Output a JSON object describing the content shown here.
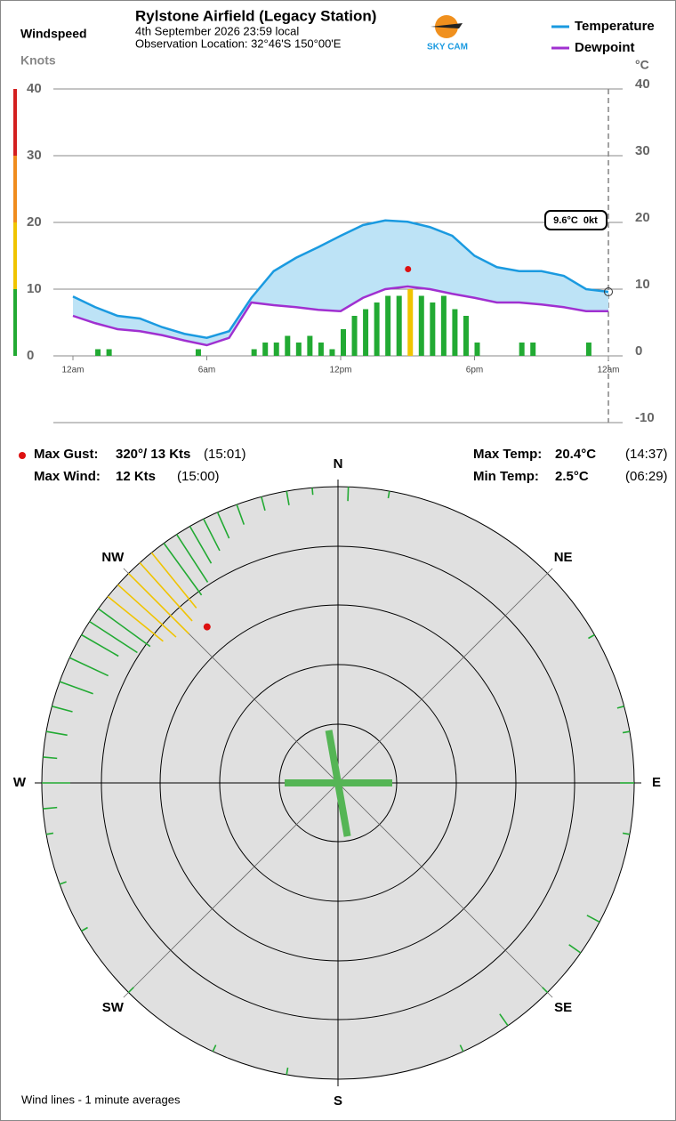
{
  "header": {
    "title": "Rylstone Airfield (Legacy Station)",
    "date": "4th September 2026  23:59 local",
    "location": "Observation Location: 32°46'S 150°00'E",
    "logo": "SKY CAM"
  },
  "chart_data": [
    {
      "type": "line",
      "yaxis_title": "Windspeed",
      "ylabel": "Knots",
      "y2label": "°C",
      "xlim": [
        0,
        24
      ],
      "xticks": [
        {
          "value": 0,
          "label": "12am"
        },
        {
          "value": 6,
          "label": "6am"
        },
        {
          "value": 12,
          "label": "12pm"
        },
        {
          "value": 18,
          "label": "6pm"
        },
        {
          "value": 24,
          "label": "12am"
        }
      ],
      "ylim": [
        0,
        40
      ],
      "yticks": [
        0,
        10,
        20,
        30,
        40
      ],
      "y2lim": [
        -10,
        40
      ],
      "y2ticks": [
        -10,
        0,
        10,
        20,
        30,
        40
      ],
      "grid": true,
      "legend": "top-right",
      "fill_color": "#bde3f6",
      "series": [
        {
          "name": "Temperature",
          "color": "#1a9ae0",
          "axis": "y2",
          "x": [
            0,
            1,
            2,
            3,
            4,
            5,
            6,
            7,
            8,
            9,
            10,
            11,
            12,
            13,
            14,
            15,
            16,
            17,
            18,
            19,
            20,
            21,
            22,
            23,
            24
          ],
          "values": [
            8.9,
            7.3,
            6.0,
            5.6,
            4.3,
            3.3,
            2.7,
            3.7,
            8.7,
            12.7,
            14.7,
            16.3,
            18.0,
            19.6,
            20.3,
            20.1,
            19.3,
            18.0,
            15.0,
            13.3,
            12.7,
            12.7,
            12.0,
            10.0,
            9.6
          ]
        },
        {
          "name": "Dewpoint",
          "color": "#a030d0",
          "axis": "y2",
          "x": [
            0,
            1,
            2,
            3,
            4,
            5,
            6,
            7,
            8,
            9,
            10,
            11,
            12,
            13,
            14,
            15,
            16,
            17,
            18,
            19,
            20,
            21,
            22,
            23,
            24
          ],
          "values": [
            6.0,
            4.9,
            4.0,
            3.7,
            3.1,
            2.3,
            1.6,
            2.7,
            8.0,
            7.6,
            7.3,
            6.9,
            6.7,
            8.7,
            10.0,
            10.4,
            10.0,
            9.3,
            8.7,
            8.0,
            8.0,
            7.7,
            7.3,
            6.7,
            6.7
          ]
        }
      ],
      "wind": {
        "x": [
          0,
          0.5,
          1,
          1.5,
          2,
          2.5,
          3,
          3.5,
          4,
          4.5,
          5,
          5.5,
          6,
          6.5,
          7,
          7.5,
          8,
          8.5,
          9,
          9.5,
          10,
          10.5,
          11,
          11.5,
          12,
          12.5,
          13,
          13.5,
          14,
          14.5,
          15,
          15.5,
          16,
          16.5,
          17,
          17.5,
          18,
          18.5,
          19,
          19.5,
          20,
          20.5,
          21,
          21.5,
          22,
          22.5,
          23,
          23.5
        ],
        "values": [
          0,
          0,
          1,
          1,
          0,
          0,
          0,
          0,
          0,
          0,
          0,
          1,
          0,
          0,
          0,
          0,
          1,
          2,
          2,
          3,
          2,
          3,
          2,
          1,
          4,
          6,
          7,
          8,
          9,
          9,
          10,
          9,
          8,
          9,
          7,
          6,
          2,
          0,
          0,
          0,
          2,
          2,
          0,
          0,
          0,
          0,
          2,
          0
        ],
        "gust": {
          "x": 15.02,
          "value": 13,
          "color": "#dd1111"
        }
      },
      "bands": [
        {
          "from": 0,
          "to": 10,
          "color": "#22aa33"
        },
        {
          "from": 10,
          "to": 20,
          "color": "#f0c400"
        },
        {
          "from": 20,
          "to": 30,
          "color": "#f08c1e"
        },
        {
          "from": 30,
          "to": 40,
          "color": "#d42020"
        }
      ],
      "annotation": {
        "x": 24,
        "value": 9.6,
        "label": "9.6°C  0kt"
      }
    },
    {
      "type": "polar",
      "compass": [
        {
          "value": 0,
          "label": "N"
        },
        {
          "value": 45,
          "label": "NE"
        },
        {
          "value": 90,
          "label": "E"
        },
        {
          "value": 135,
          "label": "SE"
        },
        {
          "value": 180,
          "label": "S"
        },
        {
          "value": 225,
          "label": "SW"
        },
        {
          "value": 270,
          "label": "W"
        },
        {
          "value": 315,
          "label": "NW"
        }
      ],
      "directions": [
        300,
        303,
        306,
        309,
        312,
        315,
        318,
        321,
        324,
        327,
        330,
        333,
        336,
        340,
        345,
        350,
        355,
        2,
        10,
        285,
        290,
        295,
        280,
        275,
        270,
        265,
        260,
        250,
        240,
        225,
        205,
        190,
        155,
        145,
        135,
        125,
        118,
        100,
        90,
        80,
        75,
        60
      ],
      "values": [
        6,
        8,
        9,
        10,
        11,
        12,
        11,
        10,
        9,
        8,
        6,
        5,
        4,
        3,
        2,
        2,
        1,
        2,
        1,
        3,
        5,
        6,
        3,
        2,
        4,
        2,
        1,
        1,
        1,
        1,
        1,
        1,
        1,
        2,
        1,
        2,
        2,
        1,
        2,
        1,
        1,
        1
      ],
      "gust": {
        "direction": 320,
        "value": 13
      }
    }
  ],
  "stats": {
    "gust_label": "Max Gust:",
    "gust": "320°/  13 Kts",
    "gust_time": "(15:01)",
    "wind_label": "Max Wind:",
    "wind": "12 Kts",
    "wind_time": "(15:00)",
    "max_label": "Max Temp:",
    "max": "20.4°C",
    "max_time": "(14:37)",
    "min_label": "Min Temp:",
    "min": "2.5°C",
    "min_time": "(06:29)"
  },
  "footer": "Wind lines - 1 minute averages"
}
